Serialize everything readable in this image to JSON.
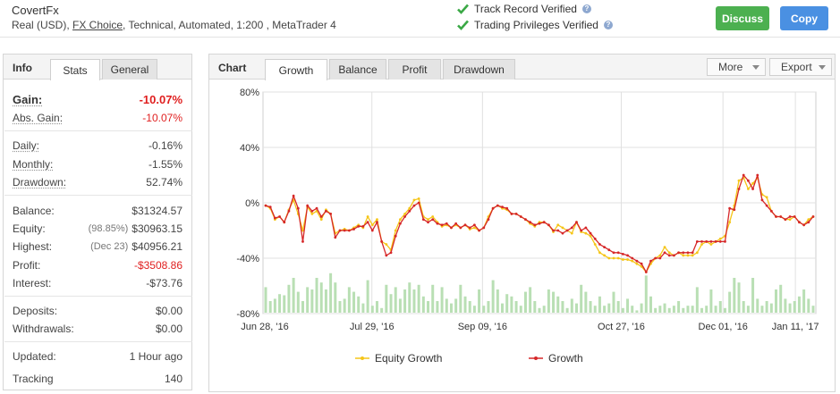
{
  "header": {
    "account_name": "CovertFx",
    "meta_prefix": "Real (USD), ",
    "meta_link": "FX Choice",
    "meta_suffix": ", Technical, Automated, 1:200 , MetaTrader 4",
    "verifications": [
      "Track Record Verified",
      "Trading Privileges Verified"
    ],
    "discuss_label": "Discuss",
    "copy_label": "Copy",
    "help_glyph": "?"
  },
  "info": {
    "title": "Info",
    "tabs": [
      "Stats",
      "General"
    ],
    "gain": {
      "label": "Gain:",
      "value": "-10.07%"
    },
    "abs_gain": {
      "label": "Abs. Gain:",
      "value": "-10.07%"
    },
    "daily": {
      "label": "Daily:",
      "value": "-0.16%"
    },
    "monthly": {
      "label": "Monthly:",
      "value": "-1.55%"
    },
    "drawdown": {
      "label": "Drawdown:",
      "value": "52.74%"
    },
    "balance": {
      "label": "Balance:",
      "value": "$31324.57"
    },
    "equity": {
      "label": "Equity:",
      "sub": "(98.85%)",
      "value": "$30963.15"
    },
    "highest": {
      "label": "Highest:",
      "sub": "(Dec 23)",
      "value": "$40956.21"
    },
    "profit": {
      "label": "Profit:",
      "value": "-$3508.86"
    },
    "interest": {
      "label": "Interest:",
      "value": "-$73.76"
    },
    "deposits": {
      "label": "Deposits:",
      "value": "$0.00"
    },
    "withdrawals": {
      "label": "Withdrawals:",
      "value": "$0.00"
    },
    "updated": {
      "label": "Updated:",
      "value": "1 Hour ago"
    },
    "tracking": {
      "label": "Tracking",
      "value": "140"
    }
  },
  "chart_panel": {
    "title": "Chart",
    "tabs": [
      "Growth",
      "Balance",
      "Profit",
      "Drawdown"
    ],
    "more_label": "More",
    "export_label": "Export"
  },
  "chart_data": {
    "type": "line",
    "ylim": [
      -80,
      80
    ],
    "yticks": [
      "80%",
      "40%",
      "0%",
      "-40%",
      "-80%"
    ],
    "xticks": [
      "Jun 28, '16",
      "Jul 29, '16",
      "Sep 09, '16",
      "Oct 27, '16",
      "Dec 01, '16",
      "Jan 11, '17"
    ],
    "colors": {
      "equity": "#f5c518",
      "growth": "#d62728",
      "volume": "#b9dfb4",
      "grid": "#e0e0e0"
    },
    "series": [
      {
        "name": "Equity Growth",
        "values": [
          -2,
          -4,
          -12,
          -10,
          -14,
          -5,
          2,
          -8,
          -20,
          -3,
          -8,
          -6,
          -12,
          -5,
          -8,
          -22,
          -20,
          -19,
          -20,
          -18,
          -16,
          -18,
          -10,
          -16,
          -12,
          -28,
          -30,
          -34,
          -20,
          -12,
          -8,
          -4,
          2,
          3,
          -10,
          -12,
          -10,
          -14,
          -17,
          -16,
          -18,
          -16,
          -18,
          -16,
          -19,
          -18,
          -20,
          -18,
          -10,
          -4,
          -2,
          -4,
          -5,
          -8,
          -8,
          -10,
          -12,
          -15,
          -17,
          -14,
          -14,
          -16,
          -21,
          -16,
          -18,
          -20,
          -22,
          -14,
          -21,
          -22,
          -24,
          -30,
          -36,
          -38,
          -40,
          -40,
          -40,
          -41,
          -41,
          -42,
          -44,
          -46,
          -50,
          -44,
          -40,
          -38,
          -32,
          -36,
          -38,
          -36,
          -38,
          -38,
          -38,
          -36,
          -30,
          -28,
          -30,
          -28,
          -26,
          -24,
          -14,
          -2,
          16,
          18,
          10,
          14,
          18,
          6,
          4,
          -6,
          -10,
          -10,
          -12,
          -12,
          -10,
          -14,
          -16,
          -12,
          -10
        ],
        "line_color_key": "equity"
      },
      {
        "name": "Growth",
        "values": [
          -2,
          -3,
          -11,
          -10,
          -14,
          -6,
          5,
          -4,
          -28,
          -2,
          -6,
          -4,
          -10,
          -6,
          -8,
          -25,
          -20,
          -20,
          -20,
          -19,
          -17,
          -17,
          -14,
          -20,
          -14,
          -28,
          -38,
          -36,
          -24,
          -15,
          -10,
          -6,
          -2,
          0,
          -12,
          -14,
          -12,
          -15,
          -16,
          -15,
          -18,
          -15,
          -18,
          -16,
          -18,
          -16,
          -20,
          -18,
          -12,
          -4,
          -2,
          -3,
          -4,
          -8,
          -8,
          -10,
          -12,
          -14,
          -16,
          -15,
          -14,
          -16,
          -20,
          -20,
          -22,
          -20,
          -18,
          -14,
          -20,
          -18,
          -22,
          -26,
          -30,
          -32,
          -34,
          -36,
          -36,
          -37,
          -38,
          -40,
          -42,
          -44,
          -50,
          -42,
          -40,
          -40,
          -36,
          -38,
          -38,
          -36,
          -36,
          -36,
          -36,
          -28,
          -28,
          -28,
          -28,
          -28,
          -28,
          -28,
          -4,
          -5,
          10,
          20,
          16,
          10,
          20,
          2,
          -2,
          -6,
          -10,
          -10,
          -12,
          -10,
          -10,
          -14,
          -16,
          -14,
          -10
        ],
        "line_color_key": "growth"
      }
    ],
    "volume": [
      22,
      10,
      12,
      16,
      15,
      24,
      30,
      18,
      10,
      22,
      20,
      30,
      26,
      20,
      34,
      26,
      10,
      12,
      22,
      18,
      14,
      8,
      28,
      6,
      10,
      4,
      24,
      16,
      22,
      12,
      20,
      26,
      20,
      24,
      14,
      10,
      24,
      10,
      22,
      12,
      8,
      12,
      24,
      14,
      10,
      6,
      20,
      6,
      10,
      28,
      20,
      8,
      16,
      14,
      10,
      6,
      18,
      22,
      10,
      4,
      6,
      20,
      18,
      14,
      10,
      4,
      12,
      8,
      24,
      18,
      10,
      6,
      14,
      6,
      8,
      18,
      10,
      4,
      12,
      6,
      2,
      8,
      32,
      14,
      4,
      6,
      8,
      4,
      6,
      10,
      4,
      6,
      6,
      22,
      4,
      6,
      20,
      6,
      10,
      4,
      18,
      30,
      26,
      10,
      6,
      30,
      12,
      6,
      10,
      8,
      20,
      24,
      12,
      8,
      10,
      14,
      20,
      12,
      6
    ]
  }
}
